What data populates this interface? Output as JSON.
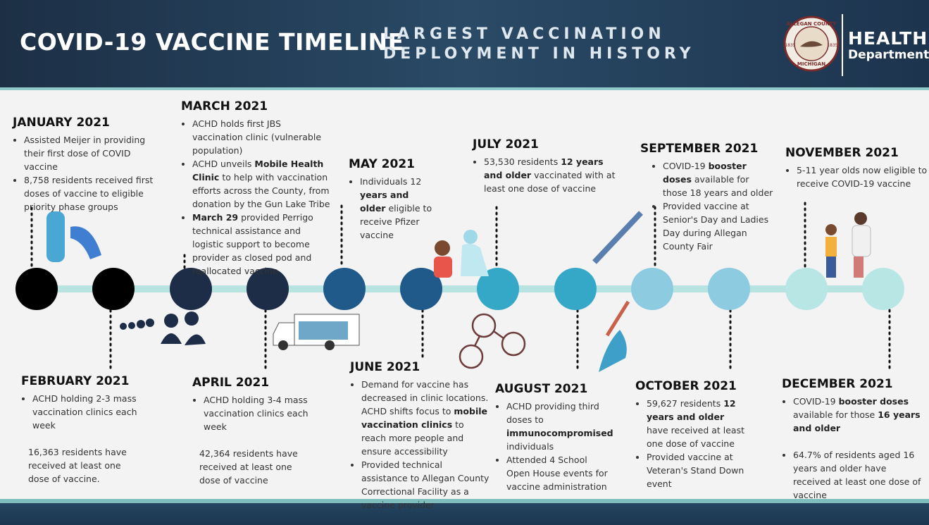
{
  "header": {
    "title": "COVID-19 VACCINE TIMELINE",
    "subtitle_lines": [
      "LARGEST VACCINATION",
      "DEPLOYMENT IN HISTORY"
    ],
    "logo": {
      "ring_top": "ALLEGAN COUNTY",
      "ring_bottom": "MICHIGAN",
      "year_left": "1835",
      "year_right": "1835"
    },
    "department_lines": [
      "HEALTH",
      "Department"
    ]
  },
  "timeline": [
    {
      "title": "JANUARY 2021",
      "bullets": [
        [
          "Assisted Meijer in providing their first dose of COVID vaccine"
        ],
        [
          "8,758 residents received first doses of vaccine to eligible priority phase groups"
        ]
      ]
    },
    {
      "title": "FEBRUARY 2021",
      "bullets": [
        [
          "ACHD holding 2-3 mass vaccination clinics each week"
        ]
      ],
      "note": "16,363 residents have received at least one dose of vaccine."
    },
    {
      "title": "MARCH 2021",
      "bullets": [
        [
          "ACHD holds first JBS vaccination clinic (vulnerable population)"
        ],
        [
          "ACHD unveils ",
          {
            "bold": "Mobile Health Clinic"
          },
          " to help with vaccination efforts across the County, from donation by the Gun Lake Tribe"
        ],
        [
          {
            "bold": "March 29"
          },
          " provided Perrigo technical assistance and logistic support to become provider as closed pod and reallocated vaccine"
        ]
      ]
    },
    {
      "title": "APRIL 2021",
      "bullets": [
        [
          "ACHD holding 3-4 mass vaccination clinics each week"
        ]
      ],
      "note": "42,364 residents have received at least one dose of vaccine"
    },
    {
      "title": "MAY 2021",
      "bullets": [
        [
          "Individuals 12 ",
          {
            "bold": "years and older"
          },
          " eligible to receive Pfizer vaccine"
        ]
      ]
    },
    {
      "title": "JUNE 2021",
      "bullets": [
        [
          "Demand for vaccine has decreased in clinic locations. ACHD shifts focus to ",
          {
            "bold": "mobile vaccination clinics"
          },
          " to reach more people and ensure accessibility"
        ],
        [
          "Provided technical assistance to Allegan County Correctional Facility as a vaccine provider"
        ]
      ]
    },
    {
      "title": "JULY 2021",
      "bullets": [
        [
          "53,530 residents ",
          {
            "bold": "12 years and older"
          },
          " vaccinated with at least one dose of vaccine"
        ]
      ]
    },
    {
      "title": "AUGUST 2021",
      "bullets": [
        [
          "ACHD providing third doses to ",
          {
            "bold": "immunocompromised"
          },
          " individuals"
        ],
        [
          "Attended 4 School Open House events for vaccine administration"
        ]
      ]
    },
    {
      "title": "SEPTEMBER 2021",
      "bullets": [
        [
          "COVID-19 ",
          {
            "bold": "booster doses"
          },
          " available for those 18 years and older"
        ],
        [
          "Provided vaccine at Senior's Day and Ladies Day during Allegan County Fair"
        ]
      ]
    },
    {
      "title": "OCTOBER 2021",
      "bullets": [
        [
          "59,627 residents ",
          {
            "bold": "12 years and older"
          },
          " have received at least one dose of vaccine"
        ],
        [
          "Provided vaccine at Veteran's Stand Down event"
        ]
      ]
    },
    {
      "title": "NOVEMBER 2021",
      "bullets": [
        [
          "5-11 year olds now eligible to receive COVID-19 vaccine"
        ]
      ]
    },
    {
      "title": "DECEMBER 2021",
      "bullets": [
        [
          "COVID-19 ",
          {
            "bold": "booster doses"
          },
          " available for those ",
          {
            "bold": "16 years and older"
          }
        ],
        [
          "64.7% of residents aged 16 years and older have received at least one dose of vaccine"
        ]
      ]
    }
  ]
}
